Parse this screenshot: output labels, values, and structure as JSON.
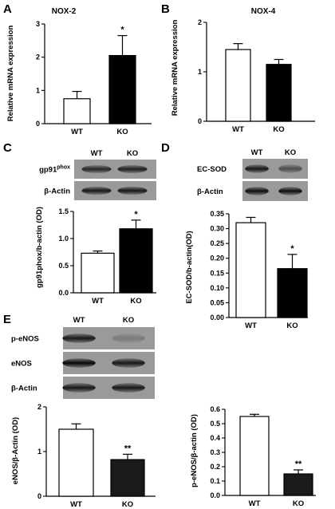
{
  "panels": [
    "A",
    "B",
    "C",
    "D",
    "E"
  ],
  "chart_data": [
    {
      "id": "A",
      "type": "bar",
      "title": "NOX-2",
      "categories": [
        "WT",
        "KO"
      ],
      "values": [
        0.75,
        2.05
      ],
      "errors": [
        0.22,
        0.6
      ],
      "significance": [
        "",
        "*"
      ],
      "ylabel": "Relative mRNA expression",
      "ylim": [
        0,
        3
      ],
      "yticks": [
        "0",
        "1",
        "2",
        "3"
      ],
      "colors": [
        "#ffffff",
        "#000000"
      ]
    },
    {
      "id": "B",
      "type": "bar",
      "title": "NOX-4",
      "categories": [
        "WT",
        "KO"
      ],
      "values": [
        1.45,
        1.15
      ],
      "errors": [
        0.12,
        0.1
      ],
      "significance": [
        "",
        ""
      ],
      "ylabel": "Relative mRNA expression",
      "ylim": [
        0,
        2
      ],
      "yticks": [
        "0",
        "1",
        "2"
      ],
      "colors": [
        "#ffffff",
        "#000000"
      ]
    },
    {
      "id": "C",
      "type": "bar",
      "title": "",
      "categories": [
        "WT",
        "KO"
      ],
      "values": [
        0.73,
        1.18
      ],
      "errors": [
        0.04,
        0.16
      ],
      "significance": [
        "",
        "*"
      ],
      "ylabel": "gp91phox/b-actin (OD)",
      "ylim": [
        0,
        1.5
      ],
      "yticks": [
        "0.0",
        "0.5",
        "1.0",
        "1.5"
      ],
      "colors": [
        "#ffffff",
        "#000000"
      ]
    },
    {
      "id": "D",
      "type": "bar",
      "title": "",
      "categories": [
        "WT",
        "KO"
      ],
      "values": [
        0.32,
        0.165
      ],
      "errors": [
        0.018,
        0.048
      ],
      "significance": [
        "",
        "*"
      ],
      "ylabel": "EC-SOD/b-actin(OD)",
      "ylim": [
        0,
        0.35
      ],
      "yticks": [
        "0.00",
        "0.05",
        "0.10",
        "0.15",
        "0.20",
        "0.25",
        "0.30",
        "0.35"
      ],
      "colors": [
        "#ffffff",
        "#000000"
      ]
    },
    {
      "id": "E-eNOS",
      "type": "bar",
      "title": "",
      "categories": [
        "WT",
        "KO"
      ],
      "values": [
        1.5,
        0.82
      ],
      "errors": [
        0.12,
        0.12
      ],
      "significance": [
        "",
        "**"
      ],
      "ylabel": "eNOS/β-Actin (OD)",
      "ylim": [
        0,
        2
      ],
      "yticks": [
        "0",
        "1",
        "2"
      ],
      "colors": [
        "#ffffff",
        "#1a1a1a"
      ]
    },
    {
      "id": "E-peNOS",
      "type": "bar",
      "title": "",
      "categories": [
        "WT",
        "KO"
      ],
      "values": [
        0.55,
        0.15
      ],
      "errors": [
        0.015,
        0.028
      ],
      "significance": [
        "",
        "**"
      ],
      "ylabel": "p-eNOS/β-actin (OD)",
      "ylim": [
        0,
        0.6
      ],
      "yticks": [
        "0.0",
        "0.1",
        "0.2",
        "0.3",
        "0.4",
        "0.5",
        "0.6"
      ],
      "colors": [
        "#ffffff",
        "#1a1a1a"
      ]
    }
  ],
  "blots": [
    {
      "id": "C",
      "lanes": [
        "WT",
        "KO"
      ],
      "rows": [
        {
          "label": "gp91",
          "label_sup": "phox",
          "bands": [
            0.75,
            0.8
          ]
        },
        {
          "label": "β-Actin",
          "label_sup": "",
          "bands": [
            0.85,
            0.85
          ]
        }
      ]
    },
    {
      "id": "D",
      "lanes": [
        "WT",
        "KO"
      ],
      "rows": [
        {
          "label": "EC-SOD",
          "label_sup": "",
          "bands": [
            0.85,
            0.5
          ]
        },
        {
          "label": "β-Actin",
          "label_sup": "",
          "bands": [
            0.9,
            0.9
          ]
        }
      ]
    },
    {
      "id": "E",
      "lanes": [
        "WT",
        "KO"
      ],
      "rows": [
        {
          "label": "p-eNOS",
          "label_sup": "",
          "bands": [
            0.85,
            0.2
          ]
        },
        {
          "label": "eNOS",
          "label_sup": "",
          "bands": [
            0.95,
            0.85
          ]
        },
        {
          "label": "β-Actin",
          "label_sup": "",
          "bands": [
            0.85,
            0.85
          ]
        }
      ]
    }
  ]
}
